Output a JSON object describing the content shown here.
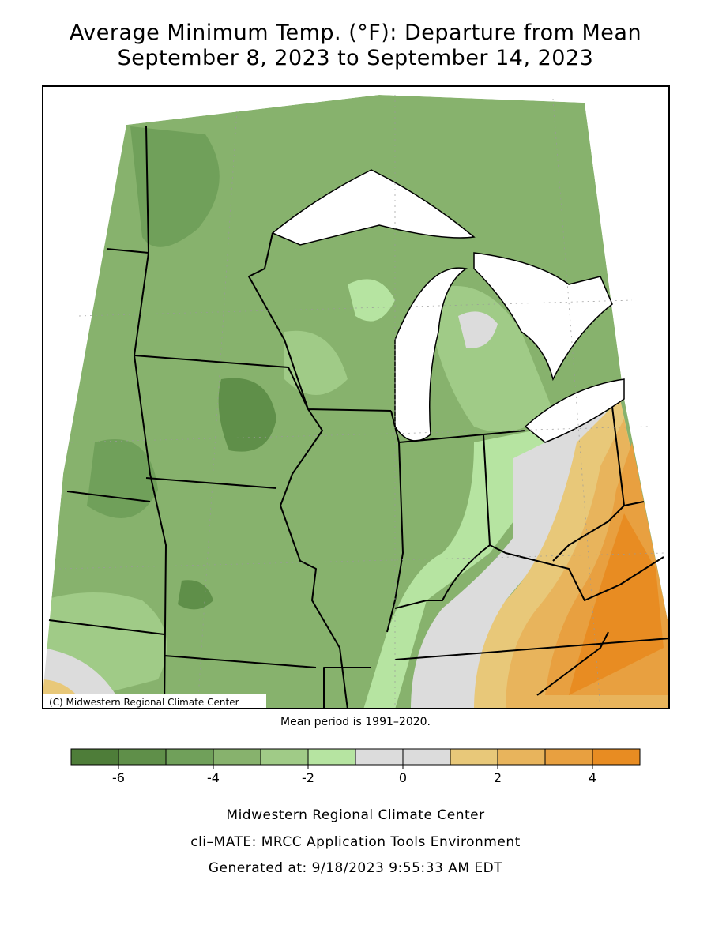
{
  "title": [
    "Average Minimum Temp. (°F): Departure from Mean",
    "September 8, 2023 to September 14, 2023"
  ],
  "map": {
    "copyright": "(C) Midwestern Regional Climate Center"
  },
  "note": "Mean period is 1991–2020.",
  "legend": {
    "bins": [
      -7,
      -6,
      -5,
      -4,
      -3,
      -2,
      -1,
      0,
      1,
      2,
      3,
      4,
      5
    ],
    "colors": [
      "#4e7d39",
      "#5f8f49",
      "#70a05a",
      "#87b26d",
      "#a0cb87",
      "#b6e4a1",
      "#dcdcdc",
      "#dcdcdc",
      "#e8c879",
      "#e8b45c",
      "#e8a040",
      "#e88c22"
    ],
    "ticks": [
      -6,
      -4,
      -2,
      0,
      2,
      4
    ]
  },
  "footer": [
    "Midwestern Regional Climate Center",
    "cli–MATE: MRCC Application Tools Environment",
    "Generated at: 9/18/2023 9:55:33 AM EDT"
  ]
}
